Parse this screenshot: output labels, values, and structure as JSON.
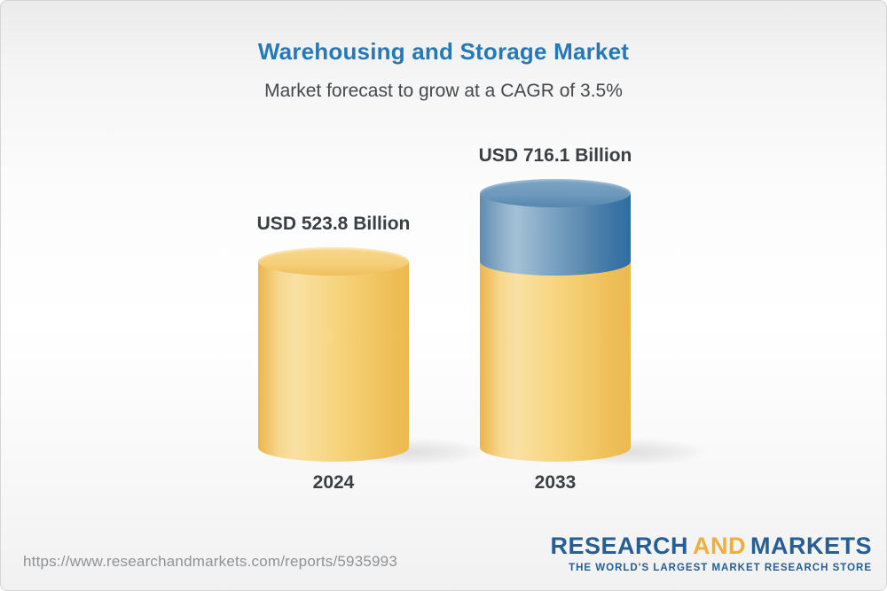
{
  "header": {
    "title": "Warehousing and Storage Market",
    "subtitle": "Market forecast to grow at a CAGR of 3.5%"
  },
  "chart_data": {
    "type": "bar",
    "variant": "3d-cylinder-infographic",
    "categories": [
      "2024",
      "2033"
    ],
    "values": [
      523.8,
      716.1
    ],
    "unit": "USD Billion",
    "bar_labels": [
      "USD 523.8 Billion",
      "USD 716.1 Billion"
    ],
    "cagr_percent": 3.5,
    "series_note": "2033 bar shows 2024 base (gold) plus forecast growth increment (blue)",
    "axes": "none",
    "grid": false,
    "legend": "none",
    "colors": {
      "base_segment": "#f4cd6f",
      "growth_segment": "#5d8bb1",
      "label_text": "#3a3f44",
      "title_blue": "#2679b9"
    }
  },
  "footer": {
    "url": "https://www.researchandmarkets.com/reports/5935993",
    "logo": {
      "part1": "RESEARCH",
      "part2": "AND",
      "part3": "MARKETS",
      "tagline": "THE WORLD'S LARGEST MARKET RESEARCH STORE",
      "blue": "#275e93",
      "gold": "#f0af3c"
    }
  }
}
